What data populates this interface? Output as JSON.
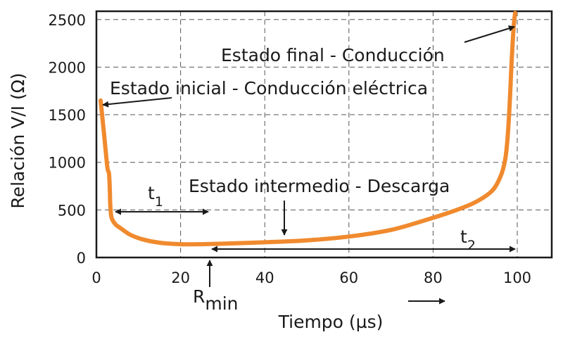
{
  "chart_data": {
    "type": "line",
    "title": "",
    "xlabel": "Tiempo (µs)",
    "ylabel": "Relación V/I (Ω)",
    "xlim": [
      0,
      110
    ],
    "ylim": [
      0,
      2800
    ],
    "xticks": [
      0,
      20,
      40,
      60,
      80,
      100
    ],
    "yticks": [
      0,
      500,
      1000,
      1500,
      2000,
      2500
    ],
    "grid": true,
    "series": [
      {
        "color": "#f08a2e",
        "x": [
          1,
          1.8,
          2.6,
          3.0,
          3.2,
          3.3,
          3.6,
          4.5,
          6,
          8,
          11,
          15,
          20,
          25,
          30,
          40,
          50,
          60,
          70,
          78,
          85,
          90,
          94,
          96,
          97,
          97.6,
          98.0,
          98.3,
          98.6,
          98.9,
          99.2,
          99.5
        ],
        "values": [
          1650,
          1300,
          950,
          880,
          700,
          550,
          420,
          350,
          300,
          240,
          190,
          155,
          140,
          140,
          145,
          160,
          180,
          220,
          290,
          390,
          490,
          580,
          700,
          850,
          1000,
          1200,
          1450,
          1700,
          2000,
          2250,
          2450,
          2570
        ]
      }
    ],
    "annotations": {
      "final": "Estado final - Conducción",
      "initial": "Estado inicial - Conducción eléctrica",
      "intermediate": "Estado intermedio - Descarga",
      "t1_main": "t",
      "t1_sub": "1",
      "t2_main": "t",
      "t2_sub": "2",
      "rmin_main": "R",
      "rmin_sub": "min"
    }
  }
}
